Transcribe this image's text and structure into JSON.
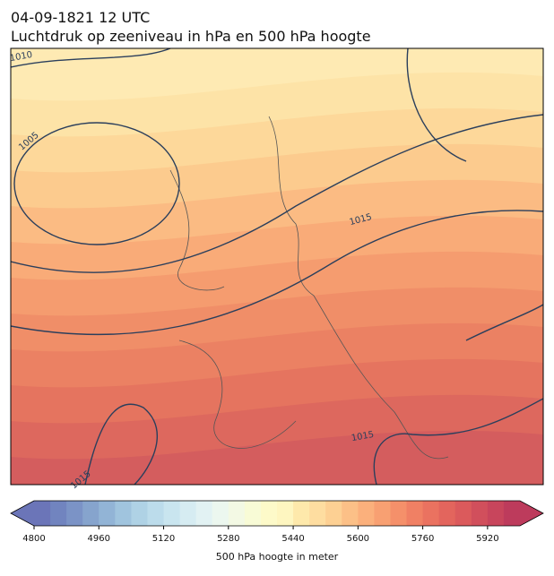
{
  "header": {
    "title": "04-09-1821 12 UTC",
    "subtitle": "Luchtdruk op zeeniveau in hPa en 500 hPa hoogte"
  },
  "contour_labels": [
    1010,
    1005,
    1015,
    1015,
    1015
  ],
  "colorbar": {
    "label": "500 hPa hoogte in meter",
    "lim": [
      4800,
      6000
    ],
    "ticks": [
      4800,
      4960,
      5120,
      5280,
      5440,
      5600,
      5760,
      5920
    ],
    "colors": [
      "#6b75b8",
      "#7184bf",
      "#7b93c6",
      "#86a4cd",
      "#92b4d6",
      "#a0c4de",
      "#afd2e5",
      "#bcdceb",
      "#c9e5ef",
      "#d6ecf2",
      "#e2f2f3",
      "#ecf7ef",
      "#f3f9e4",
      "#f8fbd6",
      "#fdfac9",
      "#fef6c0",
      "#fee9ab",
      "#fedda0",
      "#fdd093",
      "#fcc087",
      "#fbb07c",
      "#f8a072",
      "#f5906a",
      "#f08064",
      "#ea7260",
      "#e3655d",
      "#db5a5c",
      "#d14f5c",
      "#c8455c",
      "#bd3b5c"
    ]
  }
}
